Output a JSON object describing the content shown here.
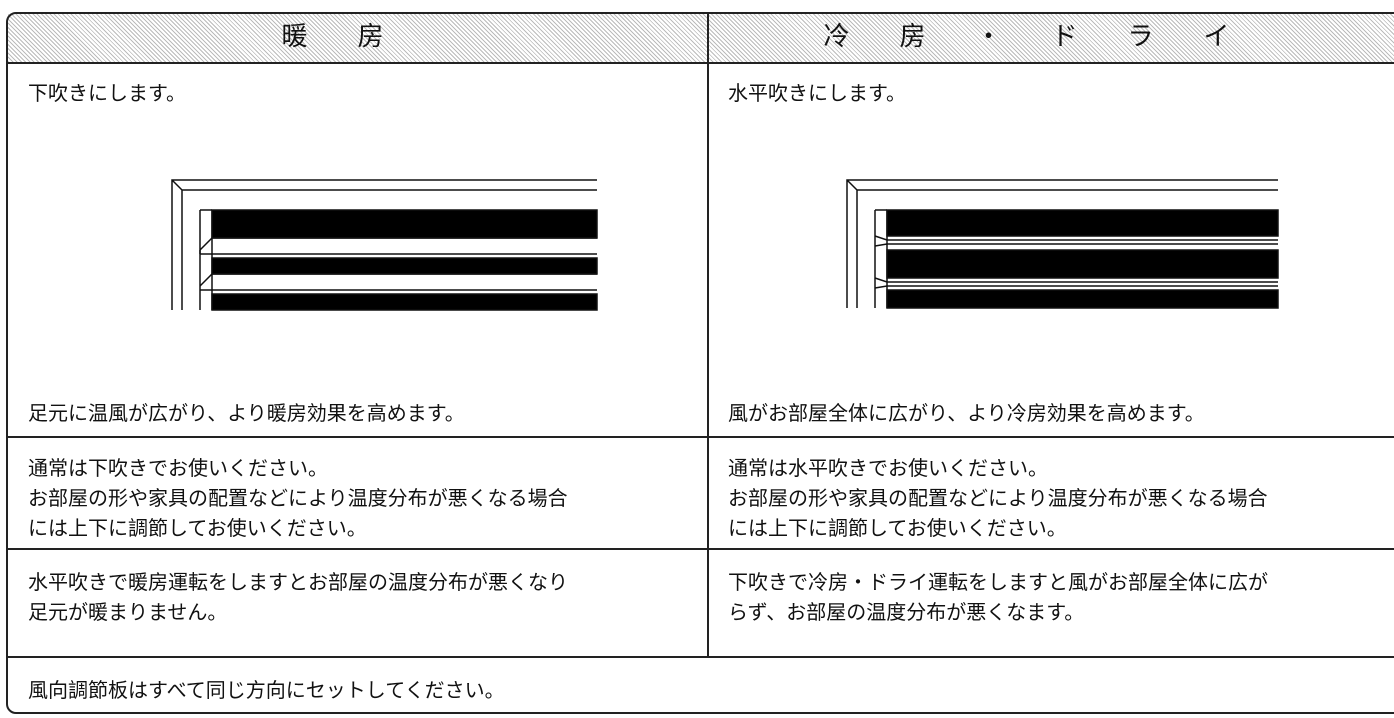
{
  "header": {
    "left": "暖房",
    "right": "冷房・ドライ"
  },
  "rows": [
    {
      "left": [
        "下吹きにします。",
        "足元に温風が広がり、より暖房効果を高めます。"
      ],
      "right": [
        "水平吹きにします。",
        "風がお部屋全体に広がり、より冷房効果を高めます。"
      ]
    },
    {
      "left": [
        "通常は下吹きでお使いください。",
        "お部屋の形や家具の配置などにより温度分布が悪くなる場合",
        "には上下に調節してお使いください。"
      ],
      "right": [
        "通常は水平吹きでお使いください。",
        "お部屋の形や家具の配置などにより温度分布が悪くなる場合",
        "には上下に調節してお使いください。"
      ]
    },
    {
      "left": [
        "水平吹きで暖房運転をしますとお部屋の温度分布が悪くなり",
        "足元が暖まりません。"
      ],
      "right": [
        "下吹きで冷房・ドライ運転をしますと風がお部屋全体に広が",
        "らず、お部屋の温度分布が悪くなます。"
      ]
    }
  ],
  "footer": "風向調節板はすべて同じ方向にセットしてください。"
}
